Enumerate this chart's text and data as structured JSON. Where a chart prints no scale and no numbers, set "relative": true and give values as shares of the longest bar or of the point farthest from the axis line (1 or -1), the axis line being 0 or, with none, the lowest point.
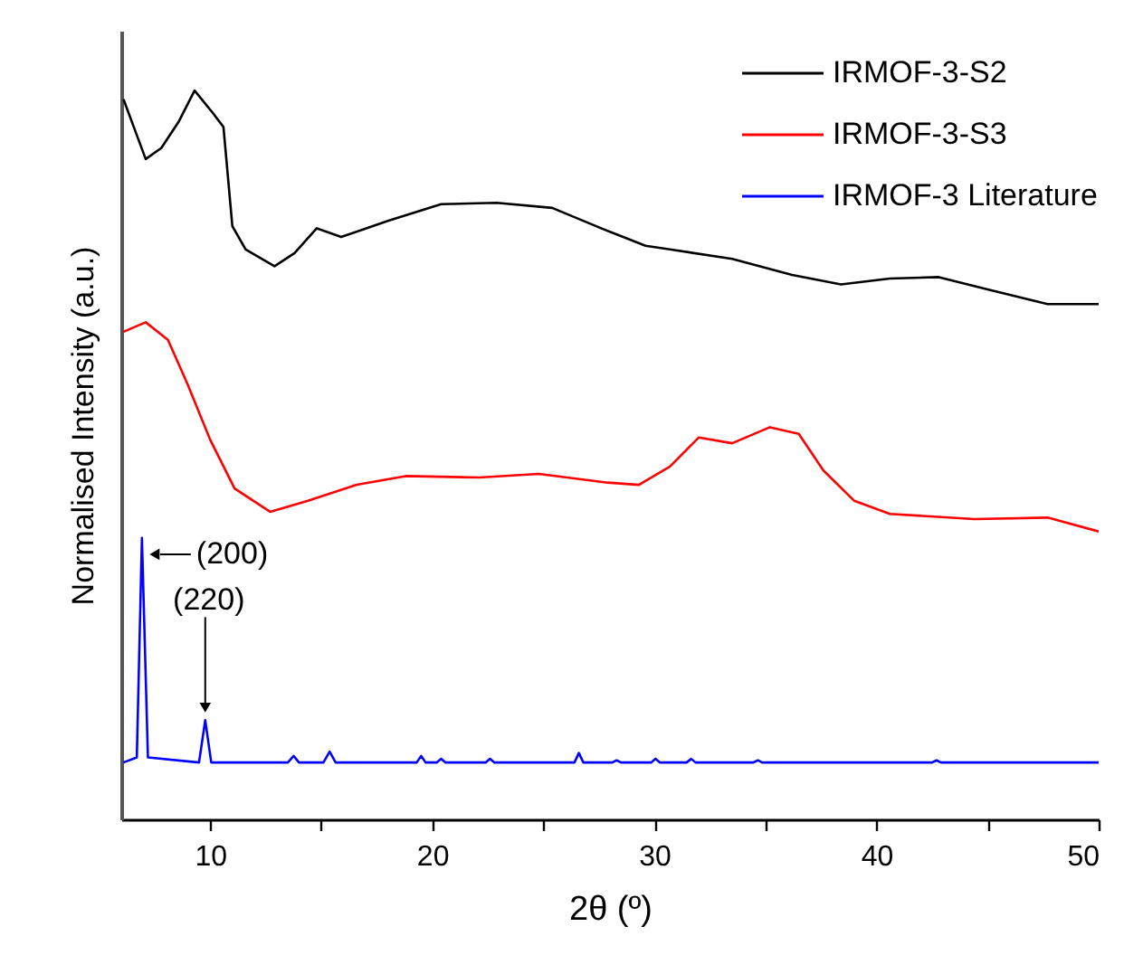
{
  "chart_data": {
    "type": "line",
    "relative": true,
    "xlabel": "2θ (º)",
    "ylabel": "Normalised Intensity (a.u.)",
    "xlim": [
      6,
      50
    ],
    "xticks": [
      10,
      {
        "value": 15,
        "label": null
      },
      20,
      {
        "value": 25,
        "label": null
      },
      30,
      {
        "value": 35,
        "label": null
      },
      40,
      {
        "value": 45,
        "label": null
      },
      50
    ],
    "legend": "top right",
    "grid": false,
    "series": [
      {
        "name": "IRMOF-3-S2",
        "color": "#000000",
        "x": [
          6.1,
          7.1,
          7.8,
          8.6,
          9.3,
          10.1,
          10.6,
          11.0,
          11.6,
          12.9,
          13.8,
          14.8,
          15.9,
          18.0,
          20.4,
          22.9,
          25.4,
          27.6,
          29.6,
          30.7,
          33.5,
          36.2,
          38.4,
          40.6,
          42.8,
          45.0,
          47.7,
          50.0
        ],
        "values": [
          0.988,
          0.906,
          0.921,
          0.958,
          1.0,
          0.97,
          0.95,
          0.814,
          0.782,
          0.759,
          0.777,
          0.811,
          0.799,
          0.821,
          0.844,
          0.846,
          0.839,
          0.811,
          0.787,
          0.782,
          0.769,
          0.747,
          0.734,
          0.742,
          0.744,
          0.727,
          0.707,
          0.707
        ]
      },
      {
        "name": "IRMOF-3-S3",
        "color": "#ff0000",
        "x": [
          6.1,
          7.1,
          8.1,
          9.0,
          10.0,
          11.1,
          12.7,
          14.4,
          16.6,
          18.8,
          22.1,
          24.8,
          27.9,
          29.3,
          30.7,
          32.0,
          33.5,
          35.2,
          36.5,
          37.6,
          39.0,
          40.6,
          44.4,
          47.7,
          50.0
        ],
        "values": [
          0.669,
          0.682,
          0.658,
          0.596,
          0.521,
          0.454,
          0.422,
          0.437,
          0.459,
          0.471,
          0.469,
          0.474,
          0.462,
          0.459,
          0.484,
          0.524,
          0.516,
          0.538,
          0.529,
          0.479,
          0.437,
          0.419,
          0.412,
          0.414,
          0.395
        ]
      },
      {
        "name": "IRMOF-3 Literature",
        "color": "#0000ff",
        "x": [
          6.1,
          6.7,
          6.93,
          7.2,
          9.5,
          9.78,
          10.05,
          13.5,
          13.76,
          14.0,
          15.1,
          15.38,
          15.65,
          19.3,
          19.5,
          19.7,
          20.2,
          20.4,
          20.6,
          22.4,
          22.6,
          22.8,
          26.4,
          26.6,
          26.8,
          28.1,
          28.3,
          28.5,
          29.85,
          30.05,
          30.25,
          31.45,
          31.66,
          31.85,
          34.45,
          34.66,
          34.85,
          42.5,
          42.7,
          42.9,
          50.0
        ],
        "values": [
          0.078,
          0.085,
          0.386,
          0.085,
          0.078,
          0.136,
          0.078,
          0.078,
          0.087,
          0.078,
          0.078,
          0.093,
          0.078,
          0.078,
          0.087,
          0.078,
          0.078,
          0.083,
          0.078,
          0.078,
          0.083,
          0.078,
          0.078,
          0.091,
          0.078,
          0.078,
          0.081,
          0.078,
          0.078,
          0.083,
          0.078,
          0.078,
          0.083,
          0.078,
          0.078,
          0.081,
          0.078,
          0.078,
          0.081,
          0.078,
          0.078
        ]
      }
    ],
    "annotations": [
      {
        "text": "(200)",
        "x": 6.93,
        "y": 0.386
      },
      {
        "text": "(220)",
        "x": 9.78,
        "y": 0.136
      }
    ]
  }
}
